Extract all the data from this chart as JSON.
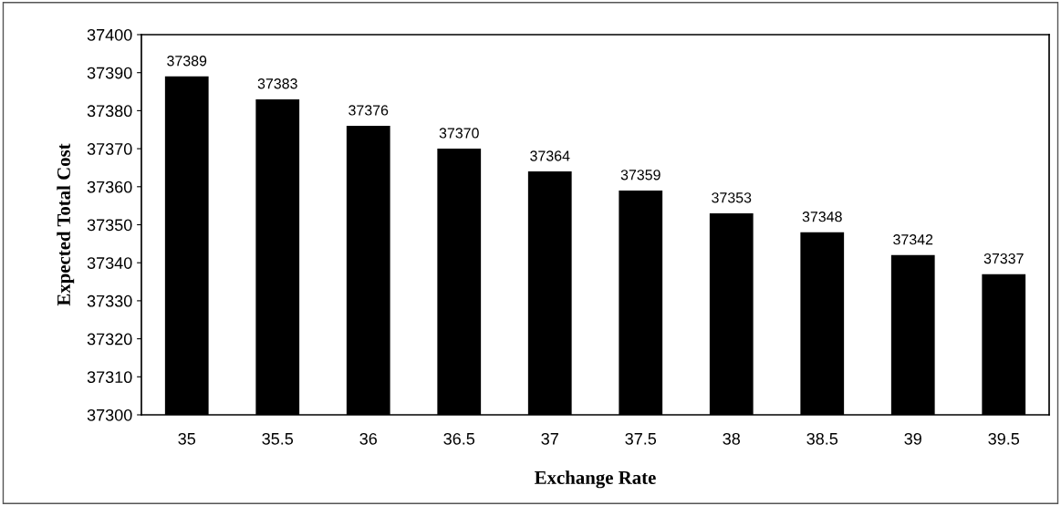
{
  "chart_data": {
    "type": "bar",
    "xlabel": "Exchange Rate",
    "ylabel": "Expected Total Cost",
    "categories": [
      "35",
      "35.5",
      "36",
      "36.5",
      "37",
      "37.5",
      "38",
      "38.5",
      "39",
      "39.5"
    ],
    "values": [
      37389,
      37383,
      37376,
      37370,
      37364,
      37359,
      37353,
      37348,
      37342,
      37337
    ],
    "color": "#000000",
    "data_labels": true,
    "ylim": [
      37300,
      37400
    ],
    "yticks": [
      37300,
      37310,
      37320,
      37330,
      37340,
      37350,
      37360,
      37370,
      37380,
      37390,
      37400
    ],
    "grid": false,
    "legend": false
  }
}
